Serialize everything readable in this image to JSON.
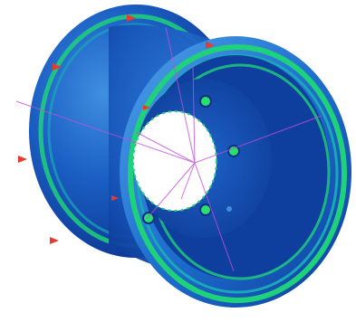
{
  "image": {
    "subject": "wheel-rim-fea-render",
    "colors": {
      "background": "#ffffff",
      "deep_blue": "#0a2f8a",
      "mid_blue": "#1b5fc4",
      "light_blue": "#3f8fe0",
      "teal": "#1aa7b8",
      "green": "#1fd17a",
      "hole_green": "#28e06a",
      "construction_line": "#c24fd8",
      "load_arrow": "#e63b2e"
    }
  }
}
